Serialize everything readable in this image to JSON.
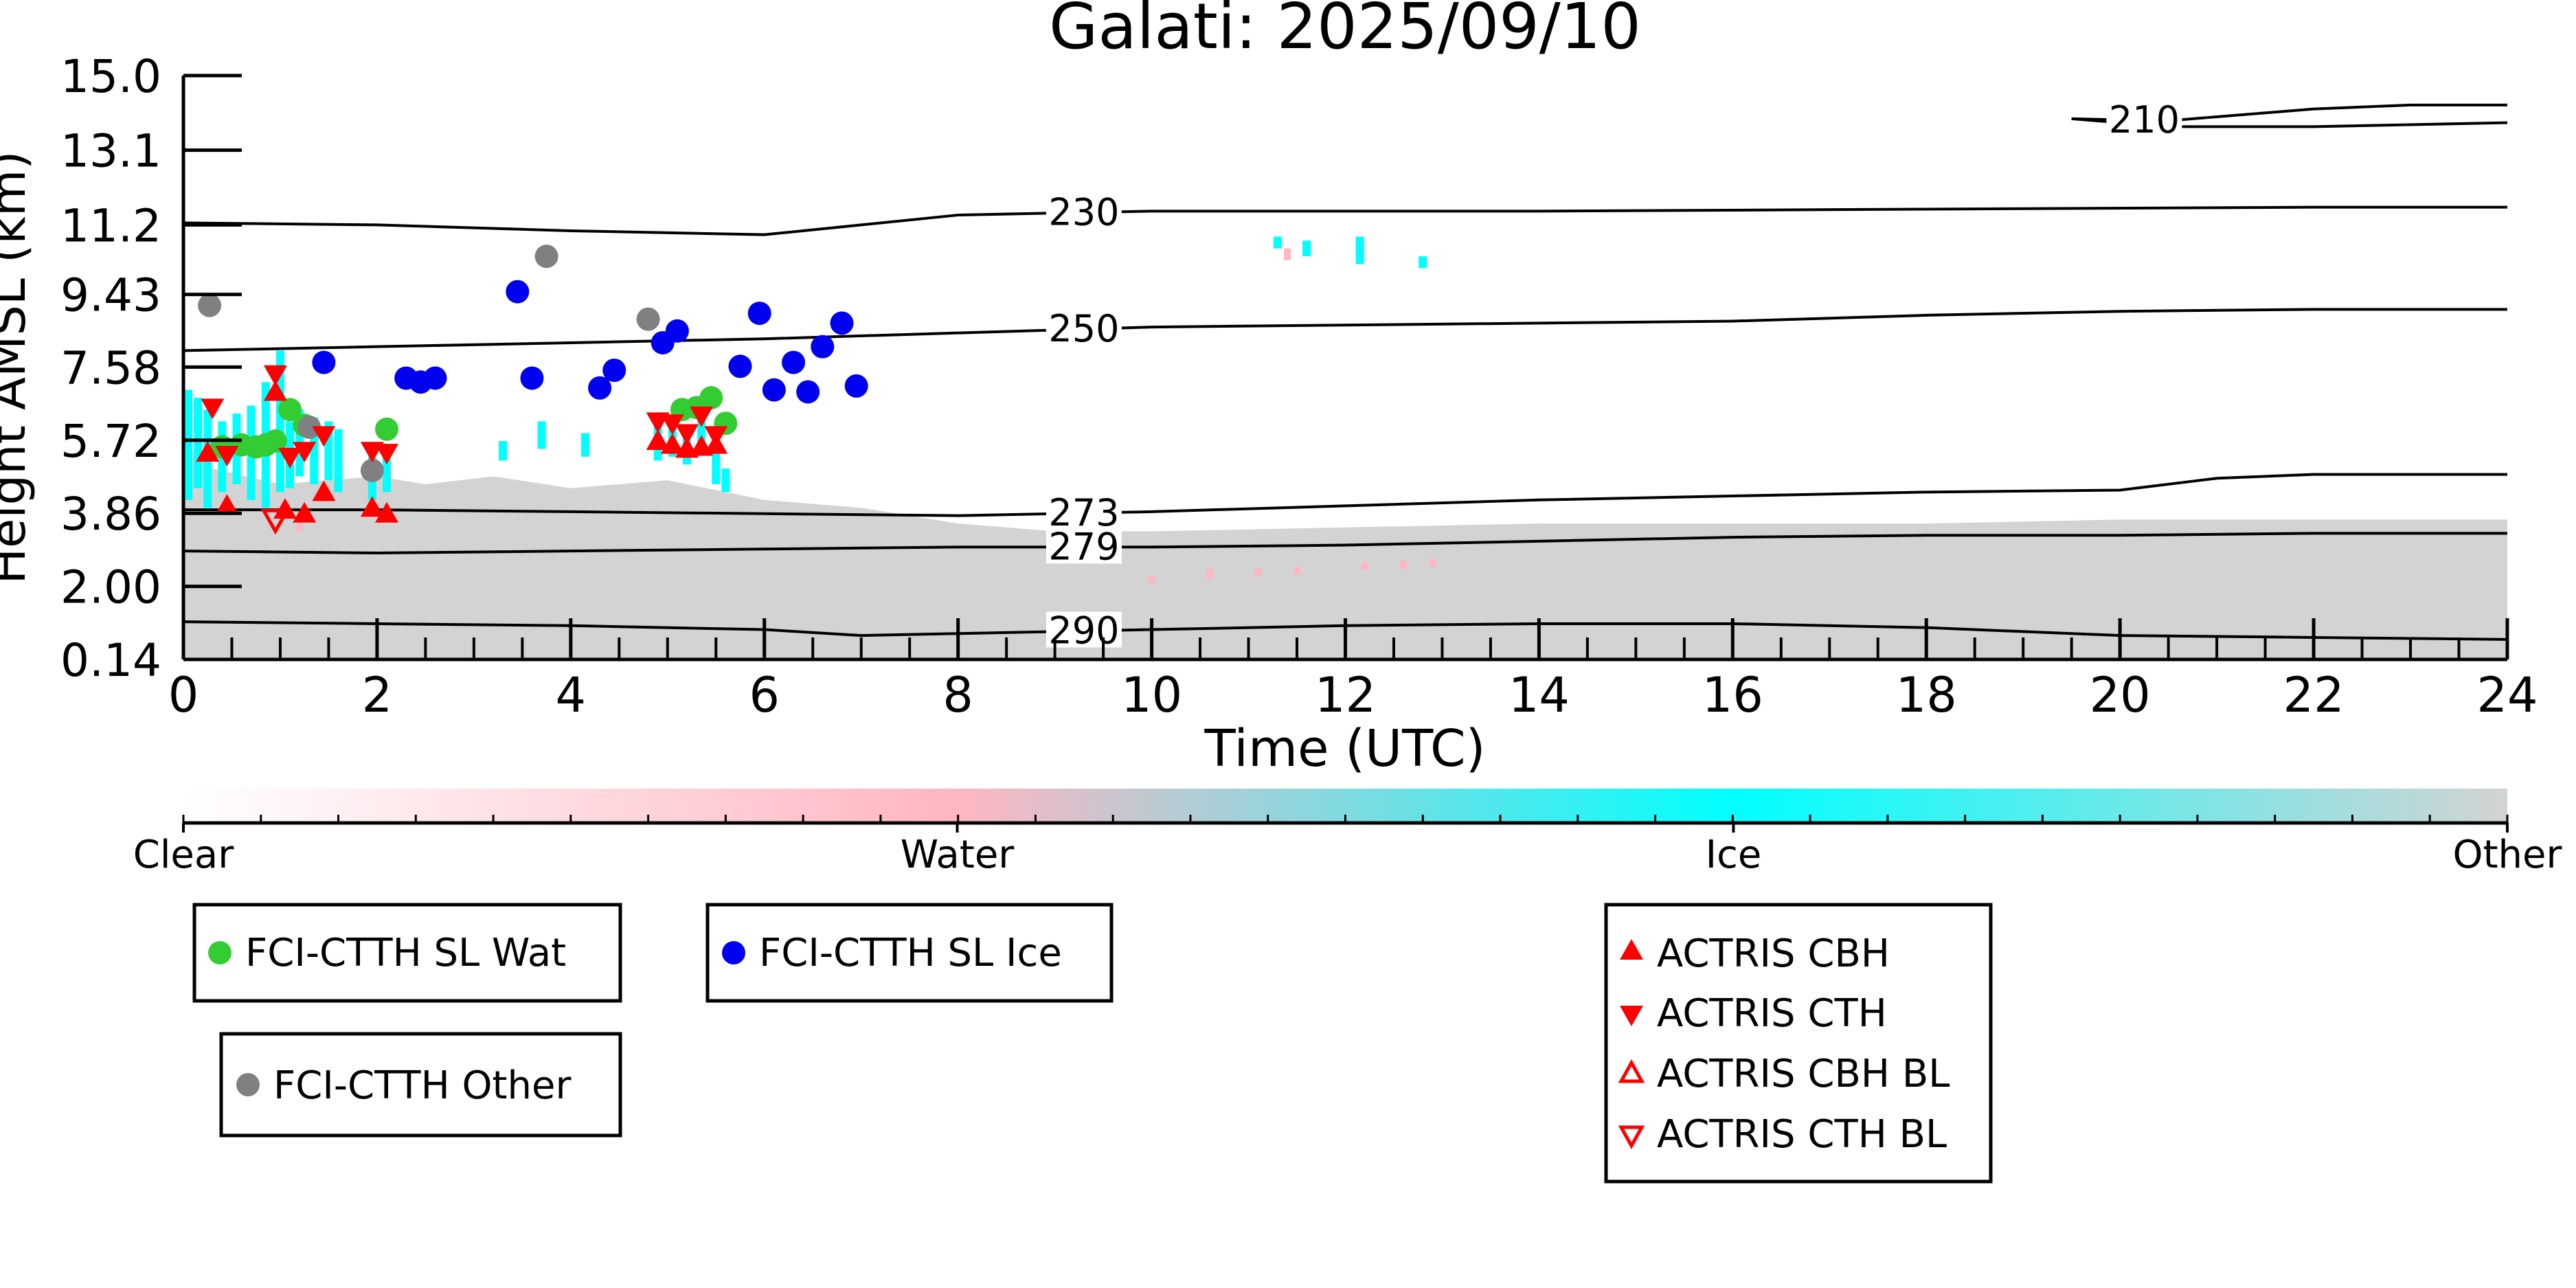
{
  "chart_data": {
    "type": "scatter",
    "title": "Galati: 2025/09/10",
    "xlabel": "Time (UTC)",
    "ylabel": "Height AMSL (km)",
    "xlim": [
      0,
      24
    ],
    "ylim": [
      0.14,
      15.0
    ],
    "x_ticks": [
      "0",
      "2",
      "4",
      "6",
      "8",
      "10",
      "12",
      "14",
      "16",
      "18",
      "20",
      "22",
      "24"
    ],
    "y_ticks": [
      "0.14",
      "2.00",
      "3.86",
      "5.72",
      "7.58",
      "9.43",
      "11.2",
      "13.1",
      "15.0"
    ],
    "background_classification": {
      "description_labels": [
        "Clear",
        "Water",
        "Ice",
        "Other"
      ],
      "colors": [
        "#ffffff",
        "#ffb6c1",
        "#00ffff",
        "#d3d3d3"
      ],
      "other_layer_top_km": [
        [
          0.0,
          5.6
        ],
        [
          0.3,
          5.0
        ],
        [
          1.0,
          4.6
        ],
        [
          2.0,
          4.8
        ],
        [
          2.5,
          4.6
        ],
        [
          3.2,
          4.8
        ],
        [
          4.0,
          4.5
        ],
        [
          5.0,
          4.7
        ],
        [
          6.0,
          4.2
        ],
        [
          7.0,
          4.0
        ],
        [
          8.0,
          3.6
        ],
        [
          9.0,
          3.4
        ],
        [
          10.0,
          3.4
        ],
        [
          12.0,
          3.5
        ],
        [
          14.0,
          3.6
        ],
        [
          16.0,
          3.6
        ],
        [
          18.0,
          3.6
        ],
        [
          20.0,
          3.7
        ],
        [
          22.0,
          3.7
        ],
        [
          24.0,
          3.7
        ]
      ],
      "ice_segments": [
        {
          "t": 0.05,
          "y0": 4.2,
          "y1": 7.0
        },
        {
          "t": 0.15,
          "y0": 4.5,
          "y1": 6.8
        },
        {
          "t": 0.25,
          "y0": 4.0,
          "y1": 6.5
        },
        {
          "t": 0.4,
          "y0": 4.4,
          "y1": 6.2
        },
        {
          "t": 0.55,
          "y0": 4.6,
          "y1": 6.4
        },
        {
          "t": 0.7,
          "y0": 4.2,
          "y1": 6.6
        },
        {
          "t": 0.85,
          "y0": 4.0,
          "y1": 7.2
        },
        {
          "t": 1.0,
          "y0": 4.4,
          "y1": 8.0
        },
        {
          "t": 1.1,
          "y0": 4.5,
          "y1": 6.2
        },
        {
          "t": 1.2,
          "y0": 4.8,
          "y1": 6.5
        },
        {
          "t": 1.35,
          "y0": 4.6,
          "y1": 6.3
        },
        {
          "t": 1.5,
          "y0": 4.7,
          "y1": 6.2
        },
        {
          "t": 1.6,
          "y0": 4.4,
          "y1": 6.0
        },
        {
          "t": 1.95,
          "y0": 4.2,
          "y1": 5.3
        },
        {
          "t": 2.1,
          "y0": 4.4,
          "y1": 5.6
        },
        {
          "t": 3.3,
          "y0": 5.2,
          "y1": 5.7
        },
        {
          "t": 3.7,
          "y0": 5.5,
          "y1": 6.2
        },
        {
          "t": 4.15,
          "y0": 5.3,
          "y1": 5.9
        },
        {
          "t": 4.9,
          "y0": 5.2,
          "y1": 6.3
        },
        {
          "t": 5.05,
          "y0": 5.3,
          "y1": 6.2
        },
        {
          "t": 5.2,
          "y0": 5.1,
          "y1": 6.0
        },
        {
          "t": 5.35,
          "y0": 5.4,
          "y1": 6.3
        },
        {
          "t": 5.5,
          "y0": 4.6,
          "y1": 5.4
        },
        {
          "t": 5.6,
          "y0": 4.4,
          "y1": 5.0
        },
        {
          "t": 11.3,
          "y0": 10.6,
          "y1": 10.9
        },
        {
          "t": 11.6,
          "y0": 10.4,
          "y1": 10.8
        },
        {
          "t": 12.15,
          "y0": 10.2,
          "y1": 10.9
        },
        {
          "t": 12.8,
          "y0": 10.1,
          "y1": 10.4
        }
      ],
      "water_segments": [
        {
          "t": 10.0,
          "y0": 2.05,
          "y1": 2.25
        },
        {
          "t": 10.6,
          "y0": 2.2,
          "y1": 2.45
        },
        {
          "t": 11.1,
          "y0": 2.25,
          "y1": 2.45
        },
        {
          "t": 11.5,
          "y0": 2.3,
          "y1": 2.5
        },
        {
          "t": 12.2,
          "y0": 2.4,
          "y1": 2.6
        },
        {
          "t": 12.6,
          "y0": 2.45,
          "y1": 2.65
        },
        {
          "t": 12.9,
          "y0": 2.5,
          "y1": 2.7
        },
        {
          "t": 11.4,
          "y0": 10.3,
          "y1": 10.6
        },
        {
          "t": 1.2,
          "y0": 3.4,
          "y1": 3.6
        },
        {
          "t": 0.4,
          "y0": 5.3,
          "y1": 5.6
        }
      ]
    },
    "contours": [
      {
        "label": "210",
        "label_x": 20.25,
        "points": [
          [
            19.5,
            13.9
          ],
          [
            20.5,
            13.85
          ],
          [
            22,
            14.15
          ],
          [
            23,
            14.25
          ],
          [
            24,
            14.25
          ]
        ],
        "points2": [
          [
            19.5,
            13.9
          ],
          [
            20.5,
            13.7
          ],
          [
            22,
            13.7
          ],
          [
            24,
            13.8
          ]
        ]
      },
      {
        "label": "230",
        "label_x": 9.3,
        "points": [
          [
            0,
            11.25
          ],
          [
            2,
            11.2
          ],
          [
            4,
            11.05
          ],
          [
            6,
            10.95
          ],
          [
            7,
            11.2
          ],
          [
            8,
            11.45
          ],
          [
            10,
            11.55
          ],
          [
            14,
            11.55
          ],
          [
            18,
            11.6
          ],
          [
            22,
            11.65
          ],
          [
            24,
            11.65
          ]
        ]
      },
      {
        "label": "250",
        "label_x": 9.3,
        "points": [
          [
            0,
            8.0
          ],
          [
            2,
            8.1
          ],
          [
            4,
            8.2
          ],
          [
            6,
            8.3
          ],
          [
            8,
            8.45
          ],
          [
            10,
            8.6
          ],
          [
            14,
            8.7
          ],
          [
            16,
            8.75
          ],
          [
            18,
            8.9
          ],
          [
            20,
            9.0
          ],
          [
            22,
            9.05
          ],
          [
            24,
            9.05
          ]
        ]
      },
      {
        "label": "273",
        "label_x": 9.3,
        "points": [
          [
            0,
            3.95
          ],
          [
            2,
            3.95
          ],
          [
            4,
            3.9
          ],
          [
            6,
            3.85
          ],
          [
            8,
            3.8
          ],
          [
            10,
            3.9
          ],
          [
            12,
            4.05
          ],
          [
            14,
            4.2
          ],
          [
            16,
            4.3
          ],
          [
            18,
            4.4
          ],
          [
            20,
            4.45
          ],
          [
            21,
            4.75
          ],
          [
            22,
            4.85
          ],
          [
            24,
            4.85
          ]
        ]
      },
      {
        "label": "279",
        "label_x": 9.3,
        "points": [
          [
            0,
            2.9
          ],
          [
            2,
            2.85
          ],
          [
            4,
            2.9
          ],
          [
            6,
            2.95
          ],
          [
            8,
            3.0
          ],
          [
            10,
            3.0
          ],
          [
            12,
            3.05
          ],
          [
            14,
            3.15
          ],
          [
            16,
            3.25
          ],
          [
            18,
            3.3
          ],
          [
            20,
            3.3
          ],
          [
            22,
            3.35
          ],
          [
            24,
            3.35
          ]
        ]
      },
      {
        "label": "290",
        "label_x": 9.3,
        "points": [
          [
            0,
            1.1
          ],
          [
            2,
            1.05
          ],
          [
            4,
            1.0
          ],
          [
            6,
            0.9
          ],
          [
            7,
            0.75
          ],
          [
            8,
            0.8
          ],
          [
            10,
            0.9
          ],
          [
            12,
            1.0
          ],
          [
            14,
            1.05
          ],
          [
            16,
            1.05
          ],
          [
            18,
            0.95
          ],
          [
            20,
            0.75
          ],
          [
            22,
            0.7
          ],
          [
            24,
            0.65
          ]
        ]
      }
    ],
    "series": [
      {
        "name": "FCI-CTTH SL Wat",
        "marker": "circle",
        "color": "#33cc33",
        "points": [
          [
            0.4,
            5.55
          ],
          [
            0.6,
            5.6
          ],
          [
            0.75,
            5.55
          ],
          [
            0.85,
            5.6
          ],
          [
            0.95,
            5.7
          ],
          [
            1.1,
            6.5
          ],
          [
            1.25,
            6.1
          ],
          [
            2.1,
            6.0
          ],
          [
            5.15,
            6.5
          ],
          [
            5.3,
            6.55
          ],
          [
            5.45,
            6.8
          ],
          [
            5.6,
            6.15
          ]
        ]
      },
      {
        "name": "FCI-CTTH SL Ice",
        "marker": "circle",
        "color": "#0000ee",
        "points": [
          [
            1.45,
            7.7
          ],
          [
            2.3,
            7.3
          ],
          [
            2.45,
            7.2
          ],
          [
            2.6,
            7.3
          ],
          [
            3.45,
            9.5
          ],
          [
            3.6,
            7.3
          ],
          [
            4.3,
            7.05
          ],
          [
            4.45,
            7.5
          ],
          [
            4.95,
            8.2
          ],
          [
            5.1,
            8.5
          ],
          [
            5.75,
            7.6
          ],
          [
            5.95,
            8.95
          ],
          [
            6.1,
            7.0
          ],
          [
            6.3,
            7.7
          ],
          [
            6.45,
            6.95
          ],
          [
            6.6,
            8.1
          ],
          [
            6.8,
            8.7
          ],
          [
            6.95,
            7.1
          ]
        ]
      },
      {
        "name": "FCI-CTTH Other",
        "marker": "circle",
        "color": "#808080",
        "points": [
          [
            0.27,
            9.15
          ],
          [
            1.3,
            6.05
          ],
          [
            1.95,
            4.95
          ],
          [
            3.75,
            10.4
          ],
          [
            4.8,
            8.8
          ]
        ]
      },
      {
        "name": "ACTRIS CBH",
        "marker": "triangle-up",
        "color": "#ff0000",
        "filled": true,
        "points": [
          [
            0.25,
            5.4
          ],
          [
            0.45,
            4.05
          ],
          [
            0.95,
            6.95
          ],
          [
            1.05,
            3.95
          ],
          [
            1.25,
            3.85
          ],
          [
            1.45,
            4.4
          ],
          [
            1.95,
            4.0
          ],
          [
            2.1,
            3.85
          ],
          [
            4.9,
            5.7
          ],
          [
            5.05,
            5.6
          ],
          [
            5.2,
            5.5
          ],
          [
            5.35,
            5.55
          ],
          [
            5.5,
            5.6
          ]
        ]
      },
      {
        "name": "ACTRIS CTH",
        "marker": "triangle-down",
        "color": "#ff0000",
        "filled": true,
        "points": [
          [
            0.3,
            6.55
          ],
          [
            0.45,
            5.35
          ],
          [
            0.95,
            7.4
          ],
          [
            1.1,
            5.3
          ],
          [
            1.25,
            5.45
          ],
          [
            1.45,
            5.85
          ],
          [
            1.95,
            5.45
          ],
          [
            2.1,
            5.4
          ],
          [
            4.9,
            6.2
          ],
          [
            5.05,
            6.15
          ],
          [
            5.2,
            5.9
          ],
          [
            5.35,
            6.35
          ],
          [
            5.5,
            5.85
          ]
        ]
      },
      {
        "name": "ACTRIS CBH BL",
        "marker": "triangle-up",
        "color": "#ff0000",
        "filled": false,
        "points": []
      },
      {
        "name": "ACTRIS CTH BL",
        "marker": "triangle-down",
        "color": "#ff0000",
        "filled": false,
        "points": [
          [
            0.95,
            3.7
          ]
        ]
      }
    ],
    "colorbar": {
      "labels": [
        "Clear",
        "Water",
        "Ice",
        "Other"
      ],
      "label_positions": [
        0,
        0.333,
        0.667,
        1.0
      ],
      "stops": [
        {
          "pos": 0.0,
          "color": "#ffffff"
        },
        {
          "pos": 0.333,
          "color": "#ffb6c1"
        },
        {
          "pos": 0.667,
          "color": "#00ffff"
        },
        {
          "pos": 1.0,
          "color": "#d3d3d3"
        }
      ]
    },
    "legends": [
      {
        "entries": [
          "FCI-CTTH SL Wat"
        ]
      },
      {
        "entries": [
          "FCI-CTTH SL Ice"
        ]
      },
      {
        "entries": [
          "FCI-CTTH Other"
        ]
      },
      {
        "entries": [
          "ACTRIS CBH",
          "ACTRIS CTH",
          "ACTRIS CBH BL",
          "ACTRIS CTH BL"
        ]
      }
    ]
  }
}
